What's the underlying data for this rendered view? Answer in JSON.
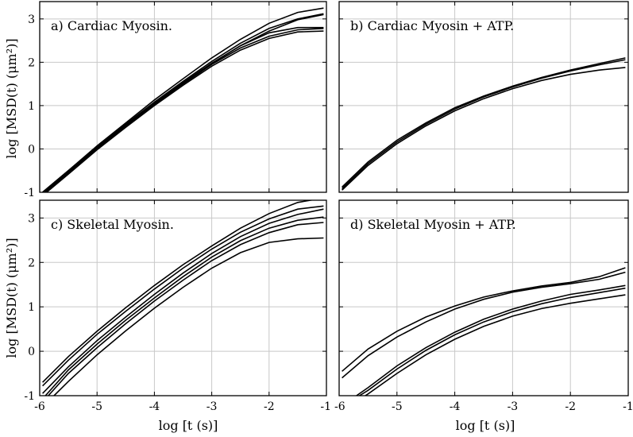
{
  "axes": {
    "xlabel": "log [t (s)]",
    "ylabel": "log [MSD(t) (μm²)]",
    "xlim": [
      -6,
      -1
    ],
    "ylim": [
      -1,
      3.4
    ],
    "xticks": [
      -6,
      -5,
      -4,
      -3,
      -2,
      -1
    ],
    "yticks": [
      -1,
      0,
      1,
      2,
      3
    ]
  },
  "chart_data": [
    {
      "type": "line",
      "title": "a) Cardiac Myosin.",
      "xlabel": "",
      "ylabel": "log [MSD(t) (μm²)]",
      "xlim": [
        -6,
        -1
      ],
      "ylim": [
        -1,
        3.4
      ],
      "grid": true,
      "series": [
        {
          "x": [
            -5.95,
            -5.5,
            -5,
            -4.5,
            -4,
            -3.5,
            -3,
            -2.5,
            -2,
            -1.5,
            -1.05
          ],
          "y": [
            -1.0,
            -0.5,
            0.07,
            0.6,
            1.13,
            1.62,
            2.1,
            2.53,
            2.9,
            3.15,
            3.25
          ]
        },
        {
          "x": [
            -5.95,
            -5.5,
            -5,
            -4.5,
            -4,
            -3.5,
            -3,
            -2.5,
            -2,
            -1.5,
            -1.05
          ],
          "y": [
            -1.0,
            -0.5,
            0.05,
            0.57,
            1.08,
            1.56,
            2.02,
            2.44,
            2.78,
            3.0,
            3.12
          ]
        },
        {
          "x": [
            -5.92,
            -5.5,
            -5,
            -4.5,
            -4,
            -3.5,
            -3,
            -2.5,
            -2,
            -1.5,
            -1.05
          ],
          "y": [
            -1.0,
            -0.52,
            0.04,
            0.55,
            1.05,
            1.53,
            1.98,
            2.38,
            2.68,
            2.8,
            2.8
          ]
        },
        {
          "x": [
            -5.9,
            -5.5,
            -5,
            -4.5,
            -4,
            -3.5,
            -3,
            -2.5,
            -2,
            -1.5,
            -1.05
          ],
          "y": [
            -1.0,
            -0.55,
            0.01,
            0.53,
            1.03,
            1.5,
            1.95,
            2.33,
            2.6,
            2.75,
            2.78
          ]
        },
        {
          "x": [
            -5.88,
            -5.5,
            -5,
            -4.5,
            -4,
            -3.5,
            -3,
            -2.5,
            -2,
            -1.5,
            -1.05
          ],
          "y": [
            -1.0,
            -0.58,
            -0.02,
            0.5,
            1.0,
            1.47,
            1.91,
            2.28,
            2.55,
            2.7,
            2.72
          ]
        },
        {
          "x": [
            -5.9,
            -5.5,
            -5,
            -4.5,
            -4,
            -3.5,
            -3,
            -2.5,
            -2,
            -1.5,
            -1.05
          ],
          "y": [
            -1.0,
            -0.54,
            0.02,
            0.54,
            1.04,
            1.52,
            1.97,
            2.38,
            2.72,
            2.98,
            3.1
          ]
        }
      ]
    },
    {
      "type": "line",
      "title": "b) Cardiac Myosin + ATP.",
      "xlabel": "",
      "ylabel": "",
      "xlim": [
        -6,
        -1
      ],
      "ylim": [
        -1,
        3.4
      ],
      "grid": true,
      "series": [
        {
          "x": [
            -5.95,
            -5.5,
            -5,
            -4.5,
            -4,
            -3.5,
            -3,
            -2.5,
            -2,
            -1.5,
            -1.05
          ],
          "y": [
            -0.88,
            -0.3,
            0.2,
            0.6,
            0.95,
            1.22,
            1.45,
            1.65,
            1.82,
            1.97,
            2.1
          ]
        },
        {
          "x": [
            -5.95,
            -5.5,
            -5,
            -4.5,
            -4,
            -3.5,
            -3,
            -2.5,
            -2,
            -1.5,
            -1.05
          ],
          "y": [
            -0.92,
            -0.34,
            0.16,
            0.57,
            0.92,
            1.2,
            1.43,
            1.63,
            1.8,
            1.94,
            2.06
          ]
        },
        {
          "x": [
            -5.95,
            -5.5,
            -5,
            -4.5,
            -4,
            -3.5,
            -3,
            -2.5,
            -2,
            -1.5,
            -1.05
          ],
          "y": [
            -0.95,
            -0.38,
            0.12,
            0.53,
            0.88,
            1.16,
            1.39,
            1.58,
            1.72,
            1.82,
            1.88
          ]
        }
      ]
    },
    {
      "type": "line",
      "title": "c) Skeletal Myosin.",
      "xlabel": "log [t (s)]",
      "ylabel": "log [MSD(t) (μm²)]",
      "xlim": [
        -6,
        -1
      ],
      "ylim": [
        -1,
        3.4
      ],
      "grid": true,
      "series": [
        {
          "x": [
            -5.95,
            -5.5,
            -5,
            -4.5,
            -4,
            -3.5,
            -3,
            -2.5,
            -2,
            -1.5,
            -1.05
          ],
          "y": [
            -0.7,
            -0.12,
            0.45,
            0.98,
            1.48,
            1.95,
            2.37,
            2.77,
            3.1,
            3.35,
            3.45
          ]
        },
        {
          "x": [
            -5.95,
            -5.5,
            -5,
            -4.5,
            -4,
            -3.5,
            -3,
            -2.5,
            -2,
            -1.5,
            -1.05
          ],
          "y": [
            -0.78,
            -0.2,
            0.38,
            0.9,
            1.4,
            1.87,
            2.3,
            2.68,
            2.98,
            3.2,
            3.27
          ]
        },
        {
          "x": [
            -5.95,
            -5.5,
            -5,
            -4.5,
            -4,
            -3.5,
            -3,
            -2.5,
            -2,
            -1.5,
            -1.05
          ],
          "y": [
            -0.95,
            -0.35,
            0.24,
            0.77,
            1.28,
            1.76,
            2.2,
            2.58,
            2.88,
            3.08,
            3.2
          ]
        },
        {
          "x": [
            -5.9,
            -5.5,
            -5,
            -4.5,
            -4,
            -3.5,
            -3,
            -2.5,
            -2,
            -1.5,
            -1.05
          ],
          "y": [
            -1.0,
            -0.42,
            0.16,
            0.7,
            1.2,
            1.68,
            2.12,
            2.49,
            2.77,
            2.95,
            3.02
          ]
        },
        {
          "x": [
            -5.85,
            -5.5,
            -5,
            -4.5,
            -4,
            -3.5,
            -3,
            -2.5,
            -2,
            -1.5,
            -1.05
          ],
          "y": [
            -1.0,
            -0.5,
            0.08,
            0.62,
            1.13,
            1.6,
            2.04,
            2.4,
            2.67,
            2.85,
            2.9
          ]
        },
        {
          "x": [
            -5.75,
            -5.5,
            -5,
            -4.5,
            -4,
            -3.5,
            -3,
            -2.5,
            -2,
            -1.5,
            -1.05
          ],
          "y": [
            -1.0,
            -0.68,
            -0.08,
            0.46,
            0.97,
            1.44,
            1.87,
            2.22,
            2.45,
            2.53,
            2.55
          ]
        }
      ]
    },
    {
      "type": "line",
      "title": "d) Skeletal Myosin + ATP.",
      "xlabel": "log [t (s)]",
      "ylabel": "",
      "xlim": [
        -6,
        -1
      ],
      "ylim": [
        -1,
        3.4
      ],
      "grid": true,
      "series": [
        {
          "x": [
            -5.95,
            -5.5,
            -5,
            -4.5,
            -4,
            -3.5,
            -3,
            -2.5,
            -2,
            -1.5,
            -1.05
          ],
          "y": [
            -0.45,
            0.05,
            0.45,
            0.77,
            1.02,
            1.22,
            1.36,
            1.47,
            1.55,
            1.68,
            1.88
          ]
        },
        {
          "x": [
            -5.95,
            -5.5,
            -5,
            -4.5,
            -4,
            -3.5,
            -3,
            -2.5,
            -2,
            -1.5,
            -1.05
          ],
          "y": [
            -0.6,
            -0.1,
            0.32,
            0.66,
            0.95,
            1.17,
            1.33,
            1.44,
            1.52,
            1.62,
            1.78
          ]
        },
        {
          "x": [
            -5.7,
            -5.5,
            -5,
            -4.5,
            -4,
            -3.5,
            -3,
            -2.5,
            -2,
            -1.5,
            -1.05
          ],
          "y": [
            -1.0,
            -0.82,
            -0.33,
            0.08,
            0.43,
            0.72,
            0.95,
            1.13,
            1.28,
            1.38,
            1.48
          ]
        },
        {
          "x": [
            -5.65,
            -5.5,
            -5,
            -4.5,
            -4,
            -3.5,
            -3,
            -2.5,
            -2,
            -1.5,
            -1.05
          ],
          "y": [
            -1.0,
            -0.88,
            -0.4,
            0.02,
            0.37,
            0.66,
            0.89,
            1.07,
            1.21,
            1.32,
            1.42
          ]
        },
        {
          "x": [
            -5.55,
            -5.5,
            -5,
            -4.5,
            -4,
            -3.5,
            -3,
            -2.5,
            -2,
            -1.5,
            -1.05
          ],
          "y": [
            -1.0,
            -0.96,
            -0.5,
            -0.08,
            0.27,
            0.56,
            0.79,
            0.96,
            1.08,
            1.18,
            1.27
          ]
        }
      ]
    }
  ]
}
